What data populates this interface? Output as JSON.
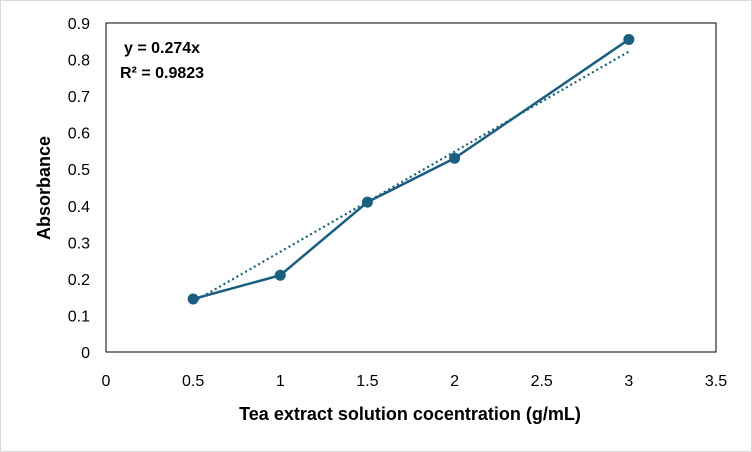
{
  "chart_data": {
    "type": "scatter",
    "xlabel": "Tea extract solution cocentration (g/mL)",
    "ylabel": "Absorbance",
    "xlim": [
      0,
      3.5
    ],
    "ylim": [
      0,
      0.9
    ],
    "xticks": [
      "0",
      "0.5",
      "1",
      "1.5",
      "2",
      "2.5",
      "3",
      "3.5"
    ],
    "yticks": [
      "0",
      "0.1",
      "0.2",
      "0.3",
      "0.4",
      "0.5",
      "0.6",
      "0.7",
      "0.8",
      "0.9"
    ],
    "grid": false,
    "series": [
      {
        "x": [
          0.5,
          1,
          1.5,
          2,
          3
        ],
        "y": [
          0.145,
          0.21,
          0.41,
          0.53,
          0.855
        ],
        "color": "#1a5e80",
        "style": "line-with-markers"
      }
    ],
    "trendline": {
      "slope": 0.274,
      "x_range": [
        0.5,
        3
      ],
      "style": "dotted",
      "color": "#1a5e80"
    },
    "annotations": {
      "equation": "y = 0.274x",
      "r_squared": "R² = 0.9823"
    }
  }
}
